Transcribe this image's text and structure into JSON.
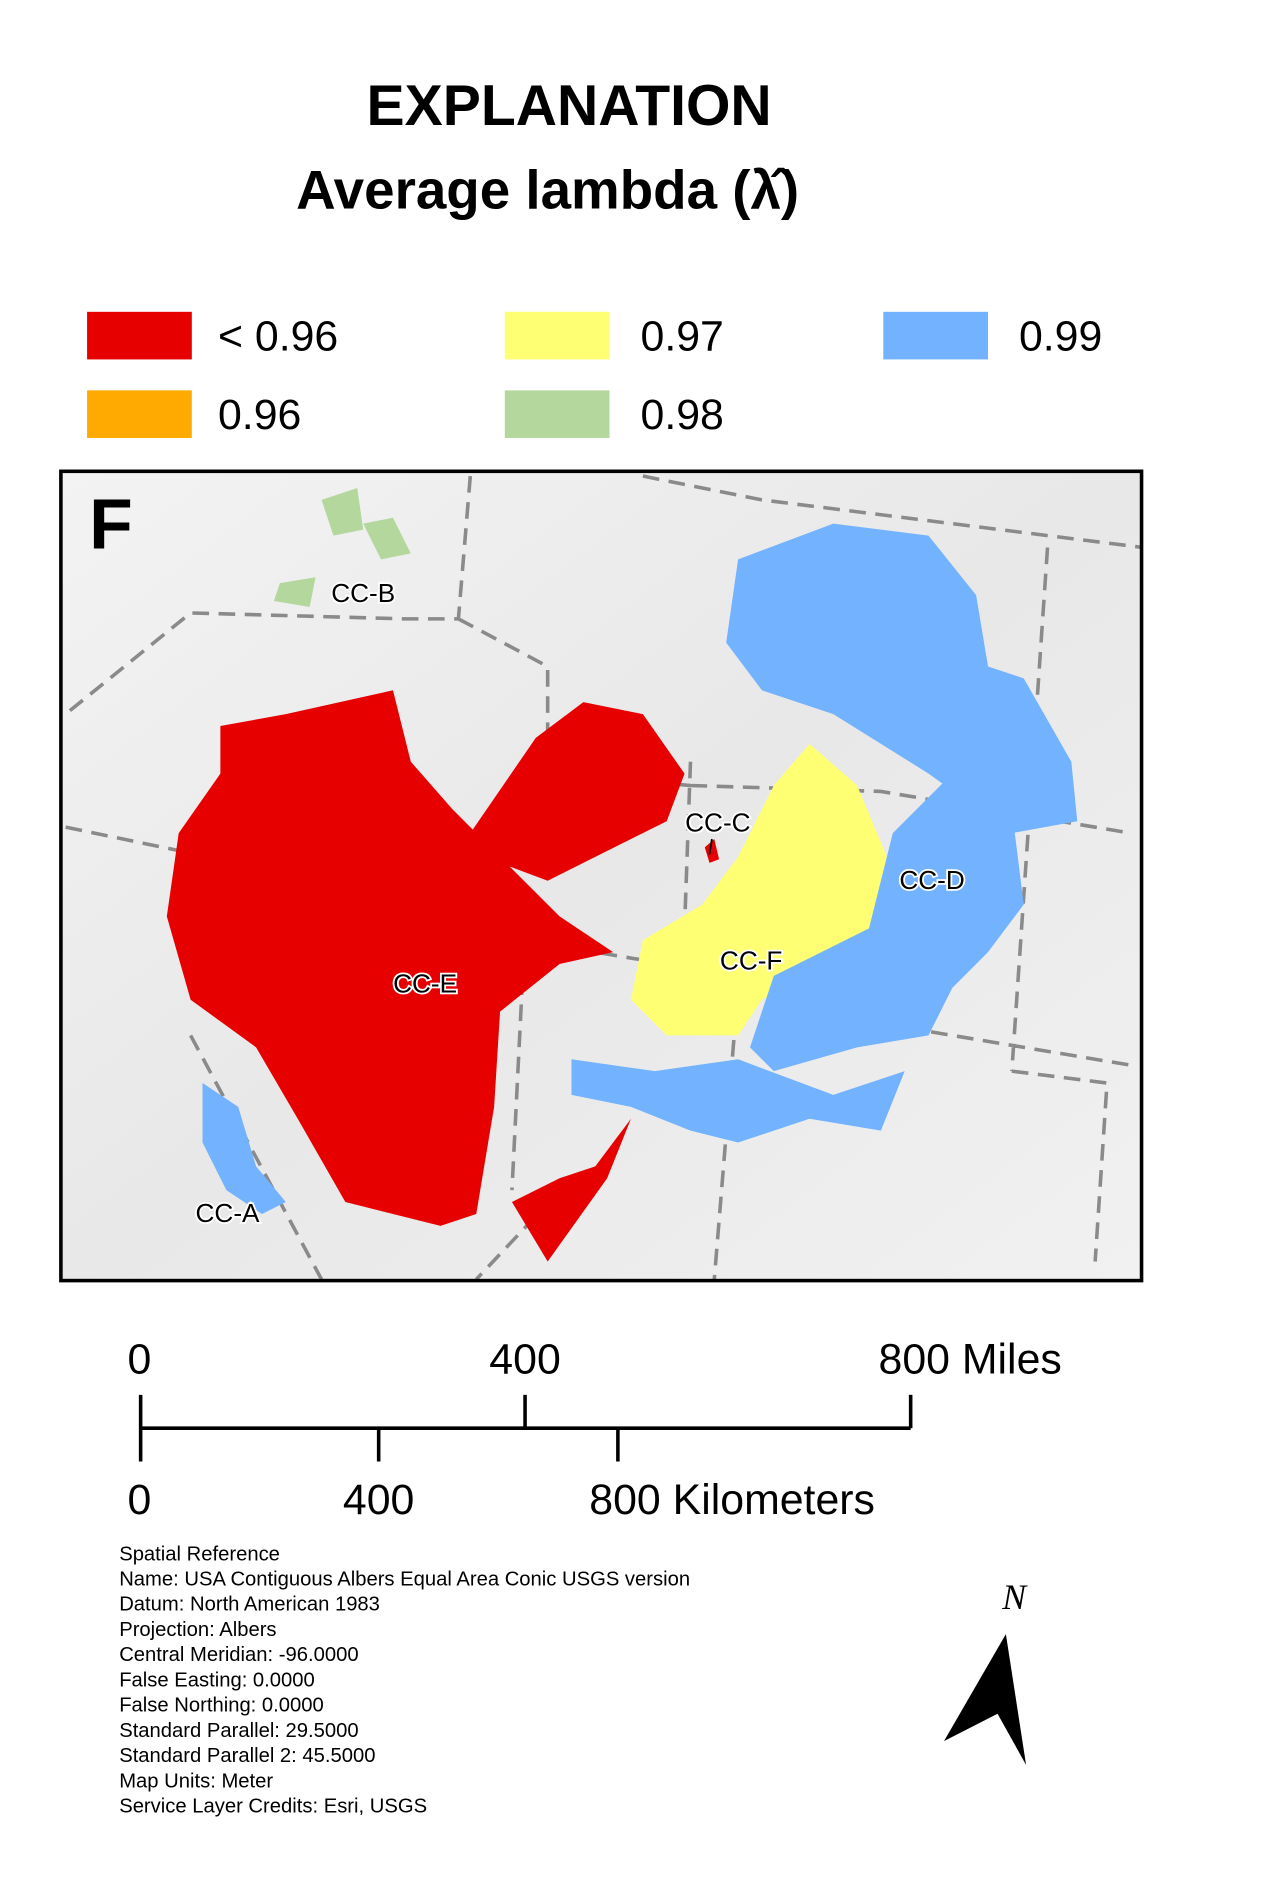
{
  "header": {
    "title": "EXPLANATION",
    "subtitle": "Average lambda (λ̂)"
  },
  "legend": [
    {
      "label": "< 0.96",
      "color": "#e60000"
    },
    {
      "label": "0.96",
      "color": "#ffaa00"
    },
    {
      "label": "0.97",
      "color": "#ffff73"
    },
    {
      "label": "0.98",
      "color": "#b4d79e"
    },
    {
      "label": "0.99",
      "color": "#73b2ff"
    }
  ],
  "map": {
    "panel": "F",
    "labels": [
      "CC-A",
      "CC-B",
      "CC-C",
      "CC-D",
      "CC-E",
      "CC-F"
    ]
  },
  "scale_bar": {
    "miles": [
      "0",
      "400",
      "800 Miles"
    ],
    "kilometers": [
      "0",
      "400",
      "800 Kilometers"
    ]
  },
  "spatial_reference": [
    "Spatial Reference",
    "Name: USA Contiguous Albers Equal Area Conic USGS version",
    "Datum: North American 1983",
    "Projection: Albers",
    "Central Meridian: -96.0000",
    "False Easting: 0.0000",
    "False Northing: 0.0000",
    "Standard Parallel: 29.5000",
    "Standard Parallel 2: 45.5000",
    "Map Units: Meter",
    "Service Layer Credits: Esri, USGS"
  ],
  "north_arrow": "N"
}
